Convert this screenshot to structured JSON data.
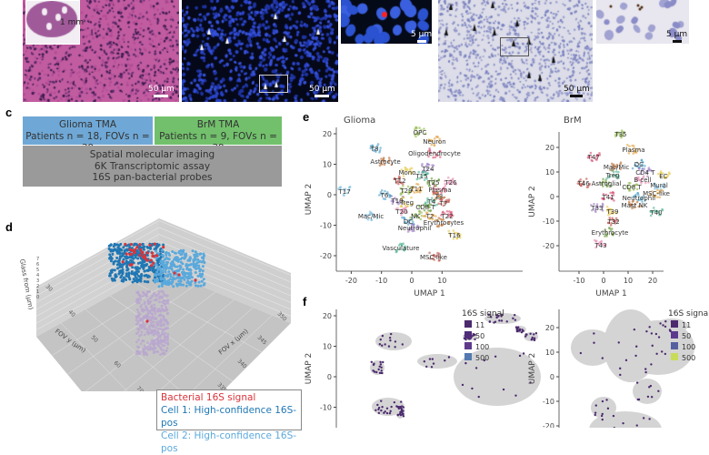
{
  "panel_a_b": {
    "he_scale": "50 µm",
    "he_inset_scale": "1 mm",
    "fish_scale": "50 µm",
    "fish_zoom_scale": "5 µm",
    "ihc_scale": "50 µm",
    "ihc_zoom_scale": "5 µm"
  },
  "panel_c": {
    "label": "c",
    "glioma_title": "Glioma TMA",
    "glioma_counts": "Patients n = 18, FOVs n = 39",
    "brm_title": "BrM TMA",
    "brm_counts": "Patients n = 9, FOVs n = 39",
    "assay_line1": "Spatial molecular imaging",
    "assay_line2": "6K Transcriptomic assay",
    "assay_line3": "16S pan-bacterial probes",
    "colors": {
      "glioma": "#6fa8d6",
      "brm": "#72c06c",
      "assay": "#9a9a9a"
    }
  },
  "chart_data": [
    {
      "panel": "d",
      "type": "scatter",
      "projection": "3d",
      "xlabel": "FOV x (µm)",
      "ylabel": "FOV y (µm)",
      "zlabel": "Glass from (µm)",
      "x_ticks": [
        "320",
        "325",
        "330",
        "335",
        "340",
        "345",
        "350"
      ],
      "y_ticks": [
        "30",
        "40",
        "50",
        "60",
        "70"
      ],
      "z_ticks": [
        "0",
        "1",
        "2",
        "3",
        "4",
        "5",
        "6",
        "7"
      ],
      "grid": true,
      "legend": [
        {
          "name": "Bacterial 16S signal",
          "color": "#d9343b"
        },
        {
          "name": "Cell 1: High-confidence 16S-pos",
          "color": "#1f77b4"
        },
        {
          "name": "Cell 2: High-confidence 16S-pos",
          "color": "#5aa9dc"
        }
      ],
      "legend_placement": "bottom-right"
    },
    {
      "panel": "e",
      "type": "scatter",
      "title": "Glioma",
      "xlabel": "UMAP 1",
      "ylabel": "UMAP 2",
      "xlim": [
        -25,
        17
      ],
      "ylim": [
        -23,
        23
      ],
      "x_ticks": [
        -20,
        -10,
        0,
        10
      ],
      "y_ticks": [
        20,
        10,
        0,
        -10,
        -20
      ],
      "cluster_labels": [
        {
          "text": "OPC",
          "x": 2.7,
          "y": 20.6
        },
        {
          "text": "Neuron",
          "x": 7.5,
          "y": 17.6
        },
        {
          "text": "Oligodendrocyte",
          "x": 7.5,
          "y": 13.7
        },
        {
          "text": "T8",
          "x": -12.3,
          "y": 15.2
        },
        {
          "text": "Astrocyte",
          "x": -8.7,
          "y": 11
        },
        {
          "text": "T24",
          "x": 5.4,
          "y": 8.7
        },
        {
          "text": "Mono",
          "x": -1.5,
          "y": 7.5
        },
        {
          "text": "T15",
          "x": 3.3,
          "y": 6.3
        },
        {
          "text": "T12",
          "x": -3.9,
          "y": 4.8
        },
        {
          "text": "T25",
          "x": 7.2,
          "y": 4.2
        },
        {
          "text": "T26",
          "x": 12.9,
          "y": 4.2
        },
        {
          "text": "T17",
          "x": -22.2,
          "y": 1.2
        },
        {
          "text": "T29",
          "x": -1.8,
          "y": 1.5
        },
        {
          "text": "T11",
          "x": 1.5,
          "y": 2.1
        },
        {
          "text": "Plasma",
          "x": 9.3,
          "y": 1.8
        },
        {
          "text": "T6",
          "x": -9,
          "y": 0
        },
        {
          "text": "T3",
          "x": 9,
          "y": -0.3
        },
        {
          "text": "T10",
          "x": -4.8,
          "y": -1.8
        },
        {
          "text": "Treg",
          "x": -1.6,
          "y": -2.4
        },
        {
          "text": "T4",
          "x": 6.6,
          "y": -2.1
        },
        {
          "text": "T7",
          "x": 10.5,
          "y": -2.7
        },
        {
          "text": "CD8 T",
          "x": 4.5,
          "y": -3.9
        },
        {
          "text": "T20",
          "x": -3.3,
          "y": -5.4
        },
        {
          "text": "Mac/Mic",
          "x": -13.5,
          "y": -6.9
        },
        {
          "text": "NK",
          "x": 1.2,
          "y": -6.9
        },
        {
          "text": "T2",
          "x": 6,
          "y": -6.9
        },
        {
          "text": "T22",
          "x": 11.7,
          "y": -6.9
        },
        {
          "text": "DC",
          "x": -1.2,
          "y": -8.7
        },
        {
          "text": "Erythrocytes",
          "x": 10.5,
          "y": -9
        },
        {
          "text": "Neutrophil",
          "x": 0.9,
          "y": -10.7
        },
        {
          "text": "T16",
          "x": 14.1,
          "y": -13.1
        },
        {
          "text": "Vasculature",
          "x": -3.6,
          "y": -17.3
        },
        {
          "text": "MSC-like",
          "x": 7.2,
          "y": -20.3
        }
      ]
    },
    {
      "panel": "e",
      "type": "scatter",
      "title": "BrM",
      "xlabel": "UMAP 1",
      "ylabel": "UMAP 2",
      "xlim": [
        -18,
        26
      ],
      "ylim": [
        -28,
        27
      ],
      "x_ticks": [
        -10,
        0,
        10,
        20
      ],
      "y_ticks": [
        20,
        10,
        0,
        -10,
        -20
      ],
      "cluster_labels": [
        {
          "text": "T35",
          "x": 7,
          "y": 25.5
        },
        {
          "text": "Plasma",
          "x": 12.2,
          "y": 19.3
        },
        {
          "text": "T47",
          "x": -4,
          "y": 16.3
        },
        {
          "text": "DC",
          "x": 14.4,
          "y": 13.3
        },
        {
          "text": "Mac/Mic",
          "x": 5.2,
          "y": 12.2
        },
        {
          "text": "CD4 T",
          "x": 17,
          "y": 10
        },
        {
          "text": "EC",
          "x": 24.4,
          "y": 8.5
        },
        {
          "text": "Treg",
          "x": 3.7,
          "y": 8.9
        },
        {
          "text": "T46",
          "x": -8.1,
          "y": 5.6
        },
        {
          "text": "Astroglial",
          "x": 1.1,
          "y": 5.6
        },
        {
          "text": "B cell",
          "x": 15.9,
          "y": 7
        },
        {
          "text": "Mural",
          "x": 22.6,
          "y": 4.8
        },
        {
          "text": "CD8 T",
          "x": 11.5,
          "y": 4
        },
        {
          "text": "MSC-like",
          "x": 21.5,
          "y": 1.5
        },
        {
          "text": "T41",
          "x": 1.9,
          "y": 0
        },
        {
          "text": "Neutrophil",
          "x": 14.4,
          "y": -0.4
        },
        {
          "text": "Mast NK",
          "x": 12.6,
          "y": -3.3
        },
        {
          "text": "T33",
          "x": -2.6,
          "y": -4.4
        },
        {
          "text": "T39",
          "x": 3.7,
          "y": -5.9
        },
        {
          "text": "T40",
          "x": 21.5,
          "y": -6.3
        },
        {
          "text": "T32",
          "x": 4.1,
          "y": -10
        },
        {
          "text": "Erythrocyte",
          "x": 2.6,
          "y": -14.4
        },
        {
          "text": "T43",
          "x": -1.1,
          "y": -19.6
        }
      ]
    },
    {
      "panel": "f",
      "type": "scatter",
      "ylabel": "UMAP 2",
      "y_ticks": [
        20,
        10,
        0,
        -10
      ],
      "legend_title": "16S signal",
      "legend": [
        {
          "name": "11",
          "color": "#4b2a6e"
        },
        {
          "name": "50",
          "color": "#4f2d7a"
        },
        {
          "name": "100",
          "color": "#5e3a8c"
        },
        {
          "name": "500",
          "color": "#5479b0"
        }
      ],
      "legend_placement": "top-right"
    },
    {
      "panel": "f",
      "type": "scatter",
      "ylabel": "UMAP 2",
      "y_ticks": [
        20,
        10,
        0,
        -10,
        -20
      ],
      "legend_title": "16S signal",
      "legend": [
        {
          "name": "11",
          "color": "#4b2a6e"
        },
        {
          "name": "50",
          "color": "#5b3a8e"
        },
        {
          "name": "100",
          "color": "#5560a0"
        },
        {
          "name": "500",
          "color": "#c8dc5a"
        }
      ],
      "legend_placement": "top-right"
    }
  ],
  "panel_labels": {
    "d": "d",
    "e": "e",
    "f": "f"
  }
}
